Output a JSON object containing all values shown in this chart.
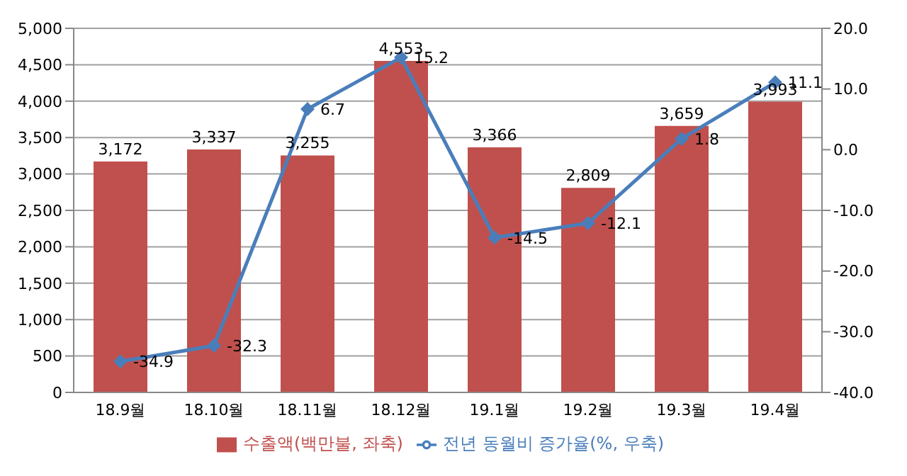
{
  "chart_data": {
    "type": "bar",
    "categories": [
      "18.9월",
      "18.10월",
      "18.11월",
      "18.12월",
      "19.1월",
      "19.2월",
      "19.3월",
      "19.4월"
    ],
    "series": [
      {
        "name": "수출액(백만불, 좌축)",
        "color": "#c0504d",
        "values": [
          3172,
          3337,
          3255,
          4553,
          3366,
          2809,
          3659,
          3993
        ],
        "value_labels": [
          "3,172",
          "3,337",
          "3,255",
          "4,553",
          "3,366",
          "2,809",
          "3,659",
          "3,993"
        ]
      },
      {
        "name": "전년 동월비 증가율(%, 우축)",
        "type": "line",
        "axis": "y2",
        "color": "#4a7ebb",
        "marker": "diamond",
        "values": [
          -34.9,
          -32.3,
          6.7,
          15.2,
          -14.5,
          -12.1,
          1.8,
          11.1
        ]
      }
    ],
    "ylim": [
      0,
      5000
    ],
    "yticks": [
      0,
      {
        "value": 500,
        "label": "500"
      },
      {
        "value": 1000,
        "label": "1,000"
      },
      {
        "value": 1500,
        "label": "1,500"
      },
      {
        "value": 2000,
        "label": "2,000"
      },
      {
        "value": 2500,
        "label": "2,500"
      },
      {
        "value": 3000,
        "label": "3,000"
      },
      {
        "value": 3500,
        "label": "3,500"
      },
      {
        "value": 4000,
        "label": "4,000"
      },
      {
        "value": 4500,
        "label": "4,500"
      },
      {
        "value": 5000,
        "label": "5,000"
      }
    ],
    "y2lim": [
      -40,
      20
    ],
    "y2ticks": [
      {
        "value": -40,
        "label": "-40.0"
      },
      {
        "value": -30,
        "label": "-30.0"
      },
      {
        "value": -20,
        "label": "-20.0"
      },
      {
        "value": -10,
        "label": "-10.0"
      },
      {
        "value": 0,
        "label": "0.0"
      },
      {
        "value": 10,
        "label": "10.0"
      },
      {
        "value": 20,
        "label": "20.0"
      }
    ],
    "grid": "y",
    "legend": "bottom",
    "data_labels": true
  }
}
